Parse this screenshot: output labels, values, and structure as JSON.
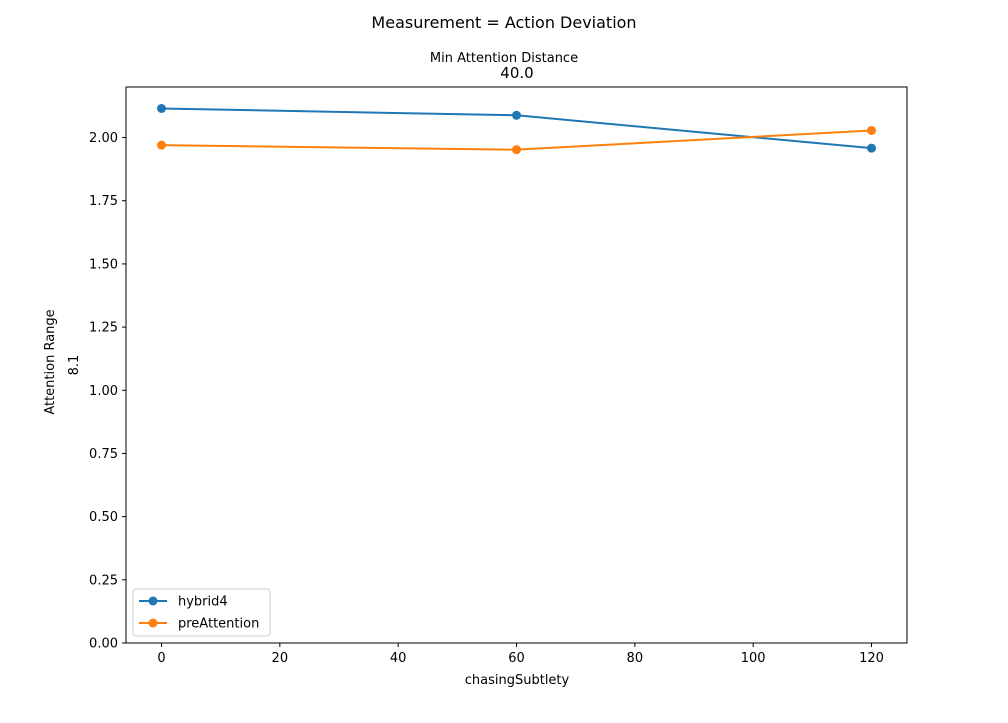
{
  "figure": {
    "suptitle": "Measurement = Action Deviation"
  },
  "chart_data": {
    "type": "line",
    "title_top": "Min Attention Distance",
    "title_bottom": "40.0",
    "xlabel": "chasingSubtlety",
    "ylabel_top": "Attention Range",
    "ylabel_bottom": "8.1",
    "xlim": [
      -6,
      126
    ],
    "ylim": [
      0,
      2.2
    ],
    "xticks": [
      0,
      20,
      40,
      60,
      80,
      100,
      120
    ],
    "yticks": [
      0.0,
      0.25,
      0.5,
      0.75,
      1.0,
      1.25,
      1.5,
      1.75,
      2.0
    ],
    "ytick_labels": [
      "0.00",
      "0.25",
      "0.50",
      "0.75",
      "1.00",
      "1.25",
      "1.50",
      "1.75",
      "2.00"
    ],
    "grid": false,
    "legend_position": "lower-left",
    "x": [
      0,
      60,
      120
    ],
    "series": [
      {
        "name": "hybrid4",
        "color": "#1f77b4",
        "values": [
          2.115,
          2.088,
          1.958
        ]
      },
      {
        "name": "preAttention",
        "color": "#ff7f0e",
        "values": [
          1.97,
          1.952,
          2.028
        ]
      }
    ]
  }
}
